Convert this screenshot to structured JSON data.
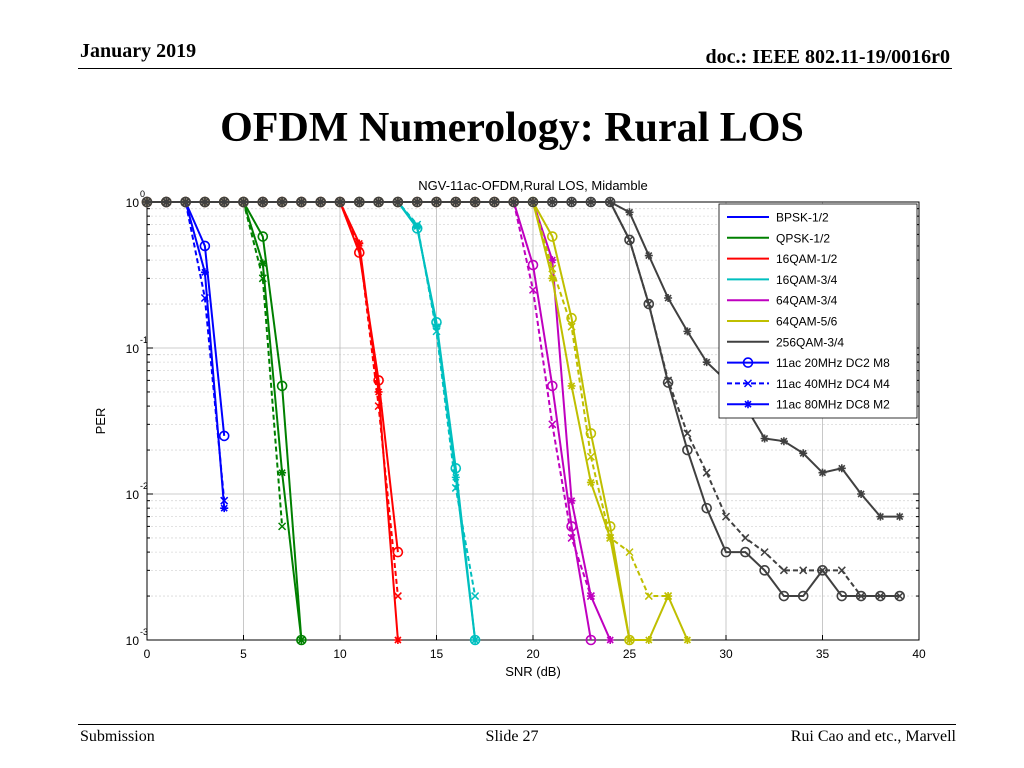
{
  "header": {
    "date": "January 2019",
    "doc": "doc.: IEEE 802.11-19/0016r0"
  },
  "slide_title": "OFDM Numerology: Rural LOS",
  "footer": {
    "left": "Submission",
    "center": "Slide 27",
    "right": "Rui Cao and etc., Marvell"
  },
  "chart_data": {
    "type": "line",
    "title": "NGV-11ac-OFDM,Rural LOS, Midamble",
    "xlabel": "SNR (dB)",
    "ylabel": "PER",
    "xlim": [
      0,
      40
    ],
    "ylim": [
      0.001,
      1
    ],
    "yscale": "log",
    "grid": true,
    "legend_position": "top-right",
    "xticks": [
      0,
      5,
      10,
      15,
      20,
      25,
      30,
      35,
      40
    ],
    "yticks": [
      {
        "value": 1,
        "base": "10",
        "exp": "0"
      },
      {
        "value": 0.1,
        "base": "10",
        "exp": "-1"
      },
      {
        "value": 0.01,
        "base": "10",
        "exp": "-2"
      },
      {
        "value": 0.001,
        "base": "10",
        "exp": "-3"
      }
    ],
    "legend": [
      {
        "label": "BPSK-1/2",
        "color": "#0000ff",
        "style": "solid",
        "marker": "none"
      },
      {
        "label": "QPSK-1/2",
        "color": "#008000",
        "style": "solid",
        "marker": "none"
      },
      {
        "label": "16QAM-1/2",
        "color": "#ff0000",
        "style": "solid",
        "marker": "none"
      },
      {
        "label": "16QAM-3/4",
        "color": "#00bfbf",
        "style": "solid",
        "marker": "none"
      },
      {
        "label": "64QAM-3/4",
        "color": "#bf00bf",
        "style": "solid",
        "marker": "none"
      },
      {
        "label": "64QAM-5/6",
        "color": "#bfbf00",
        "style": "solid",
        "marker": "none"
      },
      {
        "label": "256QAM-3/4",
        "color": "#404040",
        "style": "solid",
        "marker": "none"
      },
      {
        "label": "11ac 20MHz DC2 M8",
        "color": "#0000ff",
        "style": "solid",
        "marker": "circle"
      },
      {
        "label": "11ac 40MHz DC4 M4",
        "color": "#0000ff",
        "style": "dashed",
        "marker": "x"
      },
      {
        "label": "11ac 80MHz DC8 M2",
        "color": "#0000ff",
        "style": "solid",
        "marker": "star"
      }
    ],
    "series": [
      {
        "group": "BPSK-1/2",
        "color": "#0000ff",
        "style": "solid",
        "marker": "circle",
        "x": [
          0,
          1,
          2,
          3,
          4
        ],
        "y": [
          1,
          1,
          1,
          0.5,
          0.025
        ]
      },
      {
        "group": "BPSK-1/2",
        "color": "#0000ff",
        "style": "dashed",
        "marker": "x",
        "x": [
          0,
          1,
          2,
          3,
          4
        ],
        "y": [
          1,
          1,
          1,
          0.22,
          0.009
        ]
      },
      {
        "group": "BPSK-1/2",
        "color": "#0000ff",
        "style": "solid",
        "marker": "star",
        "x": [
          0,
          1,
          2,
          3,
          4
        ],
        "y": [
          1,
          1,
          1,
          0.33,
          0.008
        ]
      },
      {
        "group": "QPSK-1/2",
        "color": "#008000",
        "style": "solid",
        "marker": "circle",
        "x": [
          0,
          1,
          2,
          3,
          4,
          5,
          6,
          7,
          8
        ],
        "y": [
          1,
          1,
          1,
          1,
          1,
          1,
          0.58,
          0.055,
          0.001
        ]
      },
      {
        "group": "QPSK-1/2",
        "color": "#008000",
        "style": "dashed",
        "marker": "x",
        "x": [
          0,
          1,
          2,
          3,
          4,
          5,
          6,
          7
        ],
        "y": [
          1,
          1,
          1,
          1,
          1,
          1,
          0.3,
          0.006
        ]
      },
      {
        "group": "QPSK-1/2",
        "color": "#008000",
        "style": "solid",
        "marker": "star",
        "x": [
          0,
          1,
          2,
          3,
          4,
          5,
          6,
          7,
          8
        ],
        "y": [
          1,
          1,
          1,
          1,
          1,
          1,
          0.38,
          0.014,
          0.001
        ]
      },
      {
        "group": "16QAM-1/2",
        "color": "#ff0000",
        "style": "solid",
        "marker": "circle",
        "x": [
          0,
          1,
          2,
          3,
          4,
          5,
          6,
          7,
          8,
          9,
          10,
          11,
          12,
          13
        ],
        "y": [
          1,
          1,
          1,
          1,
          1,
          1,
          1,
          1,
          1,
          1,
          1,
          0.45,
          0.06,
          0.004
        ]
      },
      {
        "group": "16QAM-1/2",
        "color": "#ff0000",
        "style": "dashed",
        "marker": "x",
        "x": [
          0,
          1,
          2,
          3,
          4,
          5,
          6,
          7,
          8,
          9,
          10,
          11,
          12,
          13
        ],
        "y": [
          1,
          1,
          1,
          1,
          1,
          1,
          1,
          1,
          1,
          1,
          1,
          0.5,
          0.04,
          0.002
        ]
      },
      {
        "group": "16QAM-1/2",
        "color": "#ff0000",
        "style": "solid",
        "marker": "star",
        "x": [
          0,
          1,
          2,
          3,
          4,
          5,
          6,
          7,
          8,
          9,
          10,
          11,
          12,
          13
        ],
        "y": [
          1,
          1,
          1,
          1,
          1,
          1,
          1,
          1,
          1,
          1,
          1,
          0.52,
          0.05,
          0.001
        ]
      },
      {
        "group": "16QAM-3/4",
        "color": "#00bfbf",
        "style": "solid",
        "marker": "circle",
        "x": [
          0,
          1,
          2,
          3,
          4,
          5,
          6,
          7,
          8,
          9,
          10,
          11,
          12,
          13,
          14,
          15,
          16,
          17
        ],
        "y": [
          1,
          1,
          1,
          1,
          1,
          1,
          1,
          1,
          1,
          1,
          1,
          1,
          1,
          1,
          0.66,
          0.15,
          0.015,
          0.001
        ]
      },
      {
        "group": "16QAM-3/4",
        "color": "#00bfbf",
        "style": "dashed",
        "marker": "x",
        "x": [
          0,
          1,
          2,
          3,
          4,
          5,
          6,
          7,
          8,
          9,
          10,
          11,
          12,
          13,
          14,
          15,
          16,
          17
        ],
        "y": [
          1,
          1,
          1,
          1,
          1,
          1,
          1,
          1,
          1,
          1,
          1,
          1,
          1,
          1,
          0.7,
          0.13,
          0.011,
          0.002
        ]
      },
      {
        "group": "16QAM-3/4",
        "color": "#00bfbf",
        "style": "solid",
        "marker": "star",
        "x": [
          0,
          1,
          2,
          3,
          4,
          5,
          6,
          7,
          8,
          9,
          10,
          11,
          12,
          13,
          14,
          15,
          16,
          17
        ],
        "y": [
          1,
          1,
          1,
          1,
          1,
          1,
          1,
          1,
          1,
          1,
          1,
          1,
          1,
          1,
          0.68,
          0.14,
          0.013,
          0.001
        ]
      },
      {
        "group": "64QAM-3/4",
        "color": "#bf00bf",
        "style": "solid",
        "marker": "circle",
        "x": [
          0,
          1,
          2,
          3,
          4,
          5,
          6,
          7,
          8,
          9,
          10,
          11,
          12,
          13,
          14,
          15,
          16,
          17,
          18,
          19,
          20,
          21,
          22,
          23
        ],
        "y": [
          1,
          1,
          1,
          1,
          1,
          1,
          1,
          1,
          1,
          1,
          1,
          1,
          1,
          1,
          1,
          1,
          1,
          1,
          1,
          1,
          0.37,
          0.055,
          0.006,
          0.001
        ]
      },
      {
        "group": "64QAM-3/4",
        "color": "#bf00bf",
        "style": "dashed",
        "marker": "x",
        "x": [
          0,
          1,
          2,
          3,
          4,
          5,
          6,
          7,
          8,
          9,
          10,
          11,
          12,
          13,
          14,
          15,
          16,
          17,
          18,
          19,
          20,
          21,
          22,
          23
        ],
        "y": [
          1,
          1,
          1,
          1,
          1,
          1,
          1,
          1,
          1,
          1,
          1,
          1,
          1,
          1,
          1,
          1,
          1,
          1,
          1,
          1,
          0.25,
          0.03,
          0.005,
          0.002
        ]
      },
      {
        "group": "64QAM-3/4",
        "color": "#bf00bf",
        "style": "solid",
        "marker": "star",
        "x": [
          0,
          1,
          2,
          3,
          4,
          5,
          6,
          7,
          8,
          9,
          10,
          11,
          12,
          13,
          14,
          15,
          16,
          17,
          18,
          19,
          20,
          21,
          22,
          23,
          24
        ],
        "y": [
          1,
          1,
          1,
          1,
          1,
          1,
          1,
          1,
          1,
          1,
          1,
          1,
          1,
          1,
          1,
          1,
          1,
          1,
          1,
          1,
          1,
          0.4,
          0.009,
          0.002,
          0.001
        ]
      },
      {
        "group": "64QAM-5/6",
        "color": "#bfbf00",
        "style": "solid",
        "marker": "circle",
        "x": [
          0,
          1,
          2,
          3,
          4,
          5,
          6,
          7,
          8,
          9,
          10,
          11,
          12,
          13,
          14,
          15,
          16,
          17,
          18,
          19,
          20,
          21,
          22,
          23,
          24,
          25
        ],
        "y": [
          1,
          1,
          1,
          1,
          1,
          1,
          1,
          1,
          1,
          1,
          1,
          1,
          1,
          1,
          1,
          1,
          1,
          1,
          1,
          1,
          1,
          0.58,
          0.16,
          0.026,
          0.006,
          0.001
        ]
      },
      {
        "group": "64QAM-5/6",
        "color": "#bfbf00",
        "style": "dashed",
        "marker": "x",
        "x": [
          0,
          1,
          2,
          3,
          4,
          5,
          6,
          7,
          8,
          9,
          10,
          11,
          12,
          13,
          14,
          15,
          16,
          17,
          18,
          19,
          20,
          21,
          22,
          23,
          24,
          25,
          26,
          27
        ],
        "y": [
          1,
          1,
          1,
          1,
          1,
          1,
          1,
          1,
          1,
          1,
          1,
          1,
          1,
          1,
          1,
          1,
          1,
          1,
          1,
          1,
          1,
          0.35,
          0.14,
          0.018,
          0.005,
          0.004,
          0.002,
          0.002
        ]
      },
      {
        "group": "64QAM-5/6",
        "color": "#bfbf00",
        "style": "solid",
        "marker": "star",
        "x": [
          0,
          1,
          2,
          3,
          4,
          5,
          6,
          7,
          8,
          9,
          10,
          11,
          12,
          13,
          14,
          15,
          16,
          17,
          18,
          19,
          20,
          21,
          22,
          23,
          24,
          25,
          26,
          27,
          28
        ],
        "y": [
          1,
          1,
          1,
          1,
          1,
          1,
          1,
          1,
          1,
          1,
          1,
          1,
          1,
          1,
          1,
          1,
          1,
          1,
          1,
          1,
          1,
          0.3,
          0.055,
          0.012,
          0.005,
          0.001,
          0.001,
          0.002,
          0.001
        ]
      },
      {
        "group": "256QAM-3/4",
        "color": "#404040",
        "style": "solid",
        "marker": "circle",
        "x": [
          0,
          1,
          2,
          3,
          4,
          5,
          6,
          7,
          8,
          9,
          10,
          11,
          12,
          13,
          14,
          15,
          16,
          17,
          18,
          19,
          20,
          21,
          22,
          23,
          24,
          25,
          26,
          27,
          28,
          29,
          30,
          31,
          32,
          33,
          34,
          35,
          36,
          37,
          38,
          39
        ],
        "y": [
          1,
          1,
          1,
          1,
          1,
          1,
          1,
          1,
          1,
          1,
          1,
          1,
          1,
          1,
          1,
          1,
          1,
          1,
          1,
          1,
          1,
          1,
          1,
          1,
          1,
          0.55,
          0.2,
          0.058,
          0.02,
          0.008,
          0.004,
          0.004,
          0.003,
          0.002,
          0.002,
          0.003,
          0.002,
          0.002,
          0.002,
          0.002
        ]
      },
      {
        "group": "256QAM-3/4",
        "color": "#404040",
        "style": "dashed",
        "marker": "x",
        "x": [
          0,
          1,
          2,
          3,
          4,
          5,
          6,
          7,
          8,
          9,
          10,
          11,
          12,
          13,
          14,
          15,
          16,
          17,
          18,
          19,
          20,
          21,
          22,
          23,
          24,
          25,
          26,
          27,
          28,
          29,
          30,
          31,
          32,
          33,
          34,
          35,
          36,
          37,
          38,
          39
        ],
        "y": [
          1,
          1,
          1,
          1,
          1,
          1,
          1,
          1,
          1,
          1,
          1,
          1,
          1,
          1,
          1,
          1,
          1,
          1,
          1,
          1,
          1,
          1,
          1,
          1,
          1,
          0.55,
          0.2,
          0.06,
          0.026,
          0.014,
          0.007,
          0.005,
          0.004,
          0.003,
          0.003,
          0.003,
          0.003,
          0.002,
          0.002,
          0.002
        ]
      },
      {
        "group": "256QAM-3/4",
        "color": "#404040",
        "style": "solid",
        "marker": "star",
        "x": [
          0,
          1,
          2,
          3,
          4,
          5,
          6,
          7,
          8,
          9,
          10,
          11,
          12,
          13,
          14,
          15,
          16,
          17,
          18,
          19,
          20,
          21,
          22,
          23,
          24,
          25,
          26,
          27,
          28,
          29,
          30,
          31,
          32,
          33,
          34,
          35,
          36,
          37,
          38,
          39
        ],
        "y": [
          1,
          1,
          1,
          1,
          1,
          1,
          1,
          1,
          1,
          1,
          1,
          1,
          1,
          1,
          1,
          1,
          1,
          1,
          1,
          1,
          1,
          1,
          1,
          1,
          1,
          0.85,
          0.43,
          0.22,
          0.13,
          0.08,
          0.06,
          0.04,
          0.024,
          0.023,
          0.019,
          0.014,
          0.015,
          0.01,
          0.007,
          0.007
        ]
      }
    ]
  }
}
